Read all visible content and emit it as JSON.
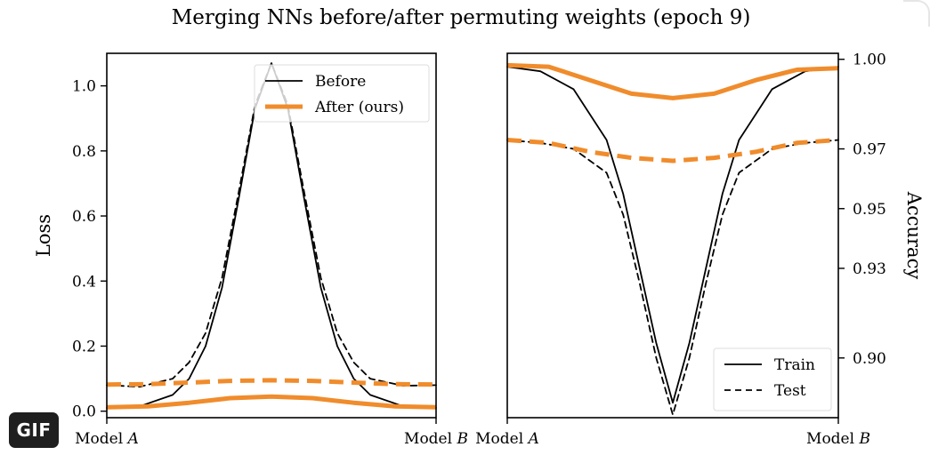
{
  "title": "Merging NNs before/after permuting weights (epoch 9)",
  "badge": {
    "label": "GIF"
  },
  "colors": {
    "before": "#000000",
    "after": "#f08c2c",
    "axis": "#000000"
  },
  "chart_data": [
    {
      "type": "line",
      "xlabel": "",
      "ylabel": "Loss",
      "xlim": [
        0,
        1
      ],
      "ylim": [
        -0.02,
        1.1
      ],
      "x_ticks": [
        {
          "value": 0,
          "prefix": "Model ",
          "italic": "A"
        },
        {
          "value": 1,
          "prefix": "Model ",
          "italic": "B"
        }
      ],
      "y_ticks": [
        0.0,
        0.2,
        0.4,
        0.6,
        0.8,
        1.0
      ],
      "y_tick_labels": [
        "0.0",
        "0.2",
        "0.4",
        "0.6",
        "0.8",
        "1.0"
      ],
      "legend": {
        "position": "top-right",
        "entries": [
          {
            "label": "Before",
            "series": "before"
          },
          {
            "label": "After (ours)",
            "series": "after"
          }
        ]
      },
      "series": [
        {
          "name": "Before – train",
          "group": "before",
          "style": "solid",
          "x": [
            0,
            0.1,
            0.2,
            0.25,
            0.3,
            0.35,
            0.4,
            0.45,
            0.5,
            0.55,
            0.6,
            0.65,
            0.7,
            0.75,
            0.8,
            0.9,
            1
          ],
          "y": [
            0.01,
            0.015,
            0.05,
            0.1,
            0.2,
            0.38,
            0.65,
            0.93,
            1.07,
            0.93,
            0.65,
            0.38,
            0.2,
            0.1,
            0.05,
            0.015,
            0.01
          ]
        },
        {
          "name": "Before – test",
          "group": "before",
          "style": "dashed",
          "x": [
            0,
            0.1,
            0.2,
            0.25,
            0.3,
            0.35,
            0.4,
            0.45,
            0.5,
            0.55,
            0.6,
            0.65,
            0.7,
            0.75,
            0.8,
            0.9,
            1
          ],
          "y": [
            0.08,
            0.075,
            0.1,
            0.15,
            0.24,
            0.41,
            0.67,
            0.94,
            1.07,
            0.94,
            0.67,
            0.41,
            0.24,
            0.15,
            0.1,
            0.078,
            0.08
          ]
        },
        {
          "name": "After (ours) – train",
          "group": "after",
          "style": "solid",
          "x": [
            0,
            0.125,
            0.25,
            0.375,
            0.5,
            0.625,
            0.75,
            0.875,
            1
          ],
          "y": [
            0.012,
            0.015,
            0.026,
            0.04,
            0.045,
            0.04,
            0.026,
            0.015,
            0.012
          ]
        },
        {
          "name": "After (ours) – test",
          "group": "after",
          "style": "dashed",
          "x": [
            0,
            0.125,
            0.25,
            0.375,
            0.5,
            0.625,
            0.75,
            0.875,
            1
          ],
          "y": [
            0.082,
            0.083,
            0.088,
            0.093,
            0.095,
            0.093,
            0.088,
            0.083,
            0.082
          ]
        }
      ]
    },
    {
      "type": "line",
      "xlabel": "",
      "ylabel": "Accuracy",
      "xlim": [
        0,
        1
      ],
      "ylim": [
        0.88,
        1.002
      ],
      "x_ticks": [
        {
          "value": 0,
          "prefix": "Model ",
          "italic": "A"
        },
        {
          "value": 1,
          "prefix": "Model ",
          "italic": "B"
        }
      ],
      "y_ticks": [
        0.9,
        0.93,
        0.95,
        0.97,
        1.0
      ],
      "y_tick_labels": [
        "0.90",
        "0.93",
        "0.95",
        "0.97",
        "1.00"
      ],
      "legend": {
        "position": "bottom-right",
        "entries": [
          {
            "label": "Train",
            "style": "solid"
          },
          {
            "label": "Test",
            "style": "dashed"
          }
        ]
      },
      "series": [
        {
          "name": "Before – train",
          "group": "before",
          "style": "solid",
          "x": [
            0,
            0.1,
            0.2,
            0.3,
            0.35,
            0.4,
            0.45,
            0.5,
            0.55,
            0.6,
            0.65,
            0.7,
            0.8,
            0.9,
            1
          ],
          "y": [
            0.9975,
            0.996,
            0.99,
            0.973,
            0.955,
            0.93,
            0.905,
            0.885,
            0.905,
            0.93,
            0.955,
            0.973,
            0.99,
            0.996,
            0.9975
          ]
        },
        {
          "name": "Before – test",
          "group": "before",
          "style": "dashed",
          "x": [
            0,
            0.1,
            0.2,
            0.3,
            0.35,
            0.4,
            0.45,
            0.5,
            0.55,
            0.6,
            0.65,
            0.7,
            0.8,
            0.9,
            1
          ],
          "y": [
            0.973,
            0.972,
            0.97,
            0.962,
            0.948,
            0.925,
            0.9,
            0.881,
            0.9,
            0.925,
            0.948,
            0.962,
            0.97,
            0.972,
            0.973
          ]
        },
        {
          "name": "After (ours) – train",
          "group": "after",
          "style": "solid",
          "x": [
            0,
            0.125,
            0.25,
            0.375,
            0.5,
            0.625,
            0.75,
            0.875,
            1
          ],
          "y": [
            0.998,
            0.9975,
            0.993,
            0.9885,
            0.987,
            0.9885,
            0.993,
            0.9965,
            0.997
          ]
        },
        {
          "name": "After (ours) – test",
          "group": "after",
          "style": "dashed",
          "x": [
            0,
            0.125,
            0.25,
            0.375,
            0.5,
            0.625,
            0.75,
            0.875,
            1
          ],
          "y": [
            0.973,
            0.972,
            0.969,
            0.967,
            0.966,
            0.967,
            0.969,
            0.972,
            0.973
          ]
        }
      ]
    }
  ]
}
